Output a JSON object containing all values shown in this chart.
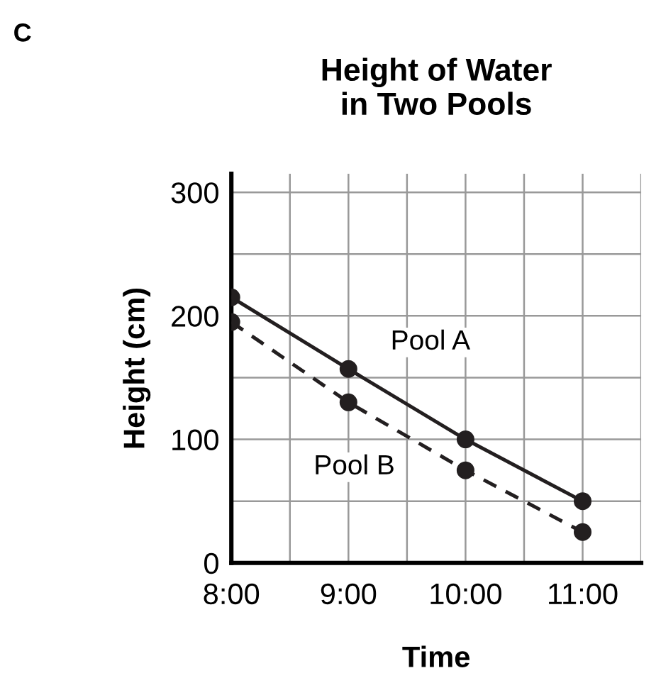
{
  "chart_data": {
    "type": "line",
    "title": "Height of Water\nin Two Pools",
    "xlabel": "Time",
    "ylabel": "Height (cm)",
    "x": [
      8,
      9,
      10,
      11
    ],
    "series": [
      {
        "name": "Pool A",
        "color": "#231f20",
        "values": [
          215,
          157,
          100,
          50
        ],
        "line_style": "solid"
      },
      {
        "name": "Pool B",
        "color": "#231f20",
        "values": [
          195,
          130,
          75,
          25
        ],
        "line_style": "dashed"
      }
    ],
    "xlim": [
      8,
      11.5
    ],
    "xticks": [
      {
        "value": 8,
        "label": "8:00"
      },
      {
        "value": 9,
        "label": "9:00"
      },
      {
        "value": 10,
        "label": "10:00"
      },
      {
        "value": 11,
        "label": "11:00"
      }
    ],
    "ylim": [
      0,
      315
    ],
    "yticks": [
      0,
      100,
      200,
      300
    ],
    "grid": true,
    "marker": "circle",
    "legend": false,
    "annotations": [
      "C"
    ]
  }
}
